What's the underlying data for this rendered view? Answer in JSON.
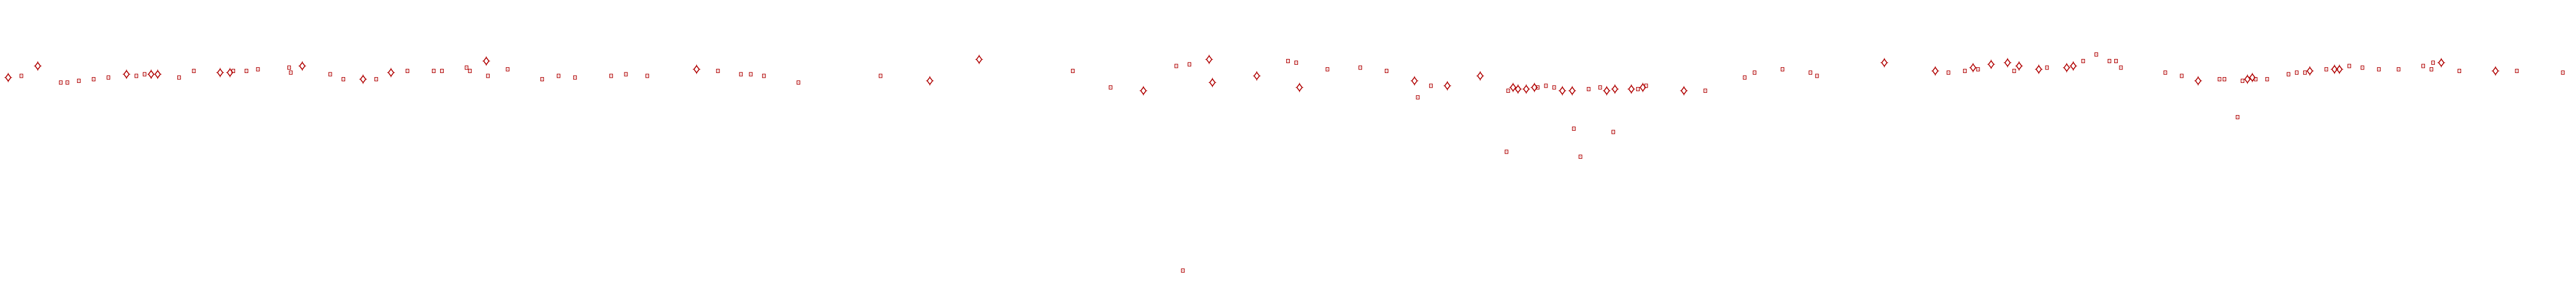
{
  "chart_data": {
    "type": "scatter",
    "title": "",
    "xlabel": "",
    "ylabel": "",
    "xlim": [
      0,
      1568
    ],
    "ylim": [
      177,
      0
    ],
    "grid": false,
    "axes_visible": false,
    "legend": "none",
    "marker_color": "#b00000",
    "series": [
      {
        "marker": "diamond",
        "points": [
          [
            5,
            47
          ],
          [
            23,
            40
          ],
          [
            77,
            45
          ],
          [
            92,
            45
          ],
          [
            96,
            45
          ],
          [
            134,
            44
          ],
          [
            140,
            44
          ],
          [
            184,
            40
          ],
          [
            221,
            48
          ],
          [
            238,
            44
          ],
          [
            296,
            37
          ],
          [
            424,
            42
          ],
          [
            566,
            49
          ],
          [
            596,
            36
          ],
          [
            696,
            55
          ],
          [
            736,
            36
          ],
          [
            738,
            50
          ],
          [
            765,
            46
          ],
          [
            791,
            53
          ],
          [
            861,
            49
          ],
          [
            881,
            52
          ],
          [
            901,
            46
          ],
          [
            921,
            53
          ],
          [
            924,
            54
          ],
          [
            929,
            54
          ],
          [
            934,
            53
          ],
          [
            951,
            55
          ],
          [
            957,
            55
          ],
          [
            978,
            55
          ],
          [
            983,
            54
          ],
          [
            993,
            54
          ],
          [
            1000,
            53
          ],
          [
            1025,
            55
          ],
          [
            1147,
            38
          ],
          [
            1178,
            43
          ],
          [
            1201,
            41
          ],
          [
            1212,
            39
          ],
          [
            1222,
            38
          ],
          [
            1229,
            40
          ],
          [
            1241,
            42
          ],
          [
            1258,
            41
          ],
          [
            1262,
            40
          ],
          [
            1338,
            49
          ],
          [
            1368,
            48
          ],
          [
            1371,
            47
          ],
          [
            1406,
            43
          ],
          [
            1421,
            42
          ],
          [
            1424,
            42
          ],
          [
            1486,
            38
          ],
          [
            1519,
            43
          ]
        ]
      },
      {
        "marker": "square",
        "points": [
          [
            13,
            46
          ],
          [
            37,
            50
          ],
          [
            41,
            50
          ],
          [
            48,
            49
          ],
          [
            57,
            48
          ],
          [
            66,
            47
          ],
          [
            83,
            46
          ],
          [
            88,
            45
          ],
          [
            109,
            47
          ],
          [
            118,
            43
          ],
          [
            142,
            43
          ],
          [
            150,
            43
          ],
          [
            157,
            42
          ],
          [
            176,
            41
          ],
          [
            177,
            44
          ],
          [
            201,
            45
          ],
          [
            209,
            48
          ],
          [
            229,
            48
          ],
          [
            248,
            43
          ],
          [
            264,
            43
          ],
          [
            269,
            43
          ],
          [
            284,
            41
          ],
          [
            286,
            43
          ],
          [
            297,
            46
          ],
          [
            309,
            42
          ],
          [
            330,
            48
          ],
          [
            340,
            46
          ],
          [
            350,
            47
          ],
          [
            372,
            46
          ],
          [
            381,
            45
          ],
          [
            394,
            46
          ],
          [
            437,
            43
          ],
          [
            451,
            45
          ],
          [
            457,
            45
          ],
          [
            465,
            46
          ],
          [
            486,
            50
          ],
          [
            536,
            46
          ],
          [
            653,
            43
          ],
          [
            676,
            53
          ],
          [
            716,
            40
          ],
          [
            720,
            164
          ],
          [
            724,
            39
          ],
          [
            784,
            37
          ],
          [
            789,
            38
          ],
          [
            808,
            42
          ],
          [
            828,
            41
          ],
          [
            844,
            43
          ],
          [
            863,
            59
          ],
          [
            871,
            52
          ],
          [
            917,
            92
          ],
          [
            918,
            55
          ],
          [
            936,
            53
          ],
          [
            941,
            52
          ],
          [
            946,
            53
          ],
          [
            958,
            78
          ],
          [
            962,
            95
          ],
          [
            967,
            54
          ],
          [
            974,
            53
          ],
          [
            982,
            80
          ],
          [
            997,
            54
          ],
          [
            1002,
            52
          ],
          [
            1038,
            55
          ],
          [
            1062,
            47
          ],
          [
            1068,
            44
          ],
          [
            1085,
            42
          ],
          [
            1102,
            44
          ],
          [
            1106,
            46
          ],
          [
            1186,
            44
          ],
          [
            1196,
            43
          ],
          [
            1204,
            42
          ],
          [
            1226,
            43
          ],
          [
            1246,
            41
          ],
          [
            1268,
            37
          ],
          [
            1276,
            33
          ],
          [
            1284,
            37
          ],
          [
            1288,
            37
          ],
          [
            1291,
            41
          ],
          [
            1318,
            44
          ],
          [
            1328,
            46
          ],
          [
            1351,
            48
          ],
          [
            1354,
            48
          ],
          [
            1362,
            71
          ],
          [
            1365,
            49
          ],
          [
            1373,
            48
          ],
          [
            1380,
            48
          ],
          [
            1393,
            45
          ],
          [
            1398,
            44
          ],
          [
            1403,
            44
          ],
          [
            1416,
            42
          ],
          [
            1430,
            40
          ],
          [
            1438,
            41
          ],
          [
            1448,
            42
          ],
          [
            1460,
            42
          ],
          [
            1475,
            40
          ],
          [
            1480,
            42
          ],
          [
            1481,
            38
          ],
          [
            1497,
            43
          ],
          [
            1532,
            43
          ],
          [
            1560,
            44
          ]
        ]
      }
    ]
  }
}
